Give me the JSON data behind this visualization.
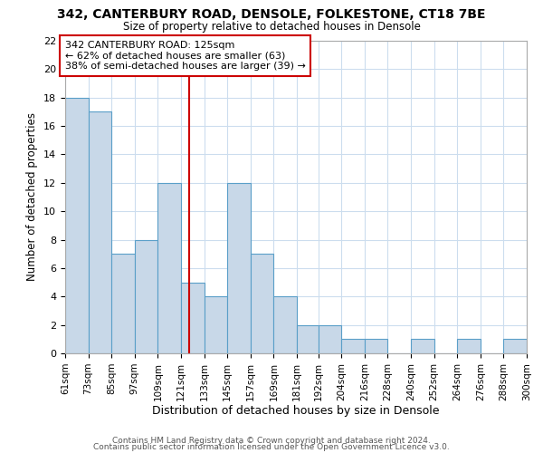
{
  "title": "342, CANTERBURY ROAD, DENSOLE, FOLKESTONE, CT18 7BE",
  "subtitle": "Size of property relative to detached houses in Densole",
  "xlabel": "Distribution of detached houses by size in Densole",
  "ylabel": "Number of detached properties",
  "bin_labels": [
    "61sqm",
    "73sqm",
    "85sqm",
    "97sqm",
    "109sqm",
    "121sqm",
    "133sqm",
    "145sqm",
    "157sqm",
    "169sqm",
    "181sqm",
    "192sqm",
    "204sqm",
    "216sqm",
    "228sqm",
    "240sqm",
    "252sqm",
    "264sqm",
    "276sqm",
    "288sqm",
    "300sqm"
  ],
  "bin_edges": [
    61,
    73,
    85,
    97,
    109,
    121,
    133,
    145,
    157,
    169,
    181,
    192,
    204,
    216,
    228,
    240,
    252,
    264,
    276,
    288,
    300
  ],
  "counts": [
    18,
    17,
    7,
    8,
    12,
    5,
    4,
    12,
    7,
    4,
    2,
    2,
    1,
    1,
    0,
    1,
    0,
    1,
    0,
    1
  ],
  "bar_color": "#c8d8e8",
  "bar_edge_color": "#5a9fc8",
  "property_line_x": 125,
  "property_line_color": "#cc0000",
  "annotation_text": "342 CANTERBURY ROAD: 125sqm\n← 62% of detached houses are smaller (63)\n38% of semi-detached houses are larger (39) →",
  "annotation_box_color": "#ffffff",
  "annotation_box_edge_color": "#cc0000",
  "ylim": [
    0,
    22
  ],
  "yticks": [
    0,
    2,
    4,
    6,
    8,
    10,
    12,
    14,
    16,
    18,
    20,
    22
  ],
  "footer1": "Contains HM Land Registry data © Crown copyright and database right 2024.",
  "footer2": "Contains public sector information licensed under the Open Government Licence v3.0.",
  "background_color": "#ffffff",
  "grid_color": "#ccddee"
}
